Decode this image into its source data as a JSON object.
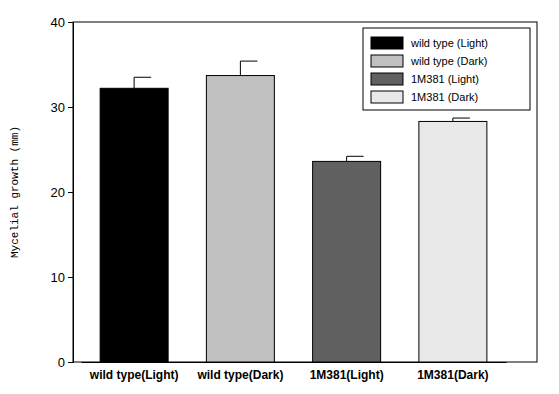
{
  "chart_data": {
    "type": "bar",
    "y_label": "Mycelial growth (mm)",
    "categories": [
      "wild type(Light)",
      "wild type(Dark)",
      "1M381(Light)",
      "1M381(Dark)"
    ],
    "series": [
      {
        "name": "wild type (Light)",
        "color": "#000000",
        "values": [
          32.2,
          null,
          null,
          null
        ],
        "errors": [
          1.3,
          null,
          null,
          null
        ]
      },
      {
        "name": "wild type (Dark)",
        "color": "#c0c0c0",
        "values": [
          null,
          33.7,
          null,
          null
        ],
        "errors": [
          null,
          1.7,
          null,
          null
        ]
      },
      {
        "name": "1M381 (Light)",
        "color": "#606060",
        "values": [
          null,
          null,
          23.6,
          null
        ],
        "errors": [
          null,
          null,
          0.6,
          null
        ]
      },
      {
        "name": "1M381 (Dark)",
        "color": "#e8e8e8",
        "values": [
          null,
          null,
          null,
          28.3
        ],
        "errors": [
          null,
          null,
          null,
          0.4
        ]
      }
    ],
    "ylim": [
      0,
      40
    ],
    "yticks": [
      0,
      10,
      20,
      30,
      40
    ],
    "legend": "upper right",
    "grid": false
  }
}
